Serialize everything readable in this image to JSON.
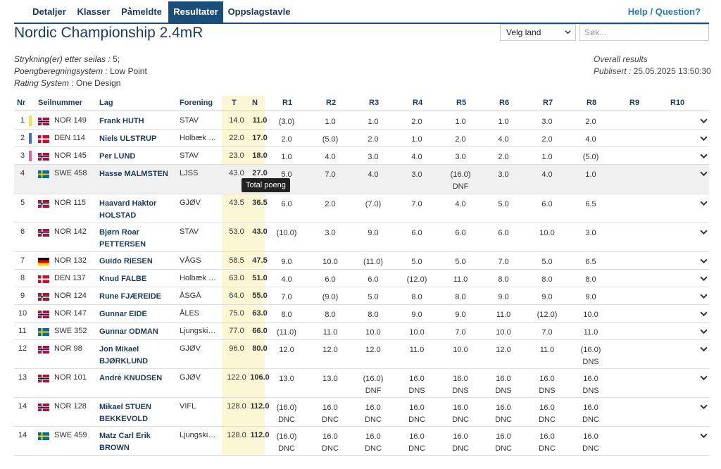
{
  "nav": {
    "tabs": [
      {
        "label": "Detaljer",
        "active": false
      },
      {
        "label": "Klasser",
        "active": false
      },
      {
        "label": "Påmeldte",
        "active": false
      },
      {
        "label": "Resultater",
        "active": true
      },
      {
        "label": "Oppslagstavle",
        "active": false
      }
    ],
    "help": "Help / Question?"
  },
  "title": "Nordic Championship 2.4mR",
  "filters": {
    "country_label": "Velg land",
    "search_placeholder": "Søk..."
  },
  "meta": {
    "discards_label": "Strykning(er) etter seilas :",
    "discards_value": "5;",
    "scoring_label": "Poengberegningsystem :",
    "scoring_value": "Low Point",
    "rating_label": "Rating System :",
    "rating_value": "One Design",
    "overall": "Overall results",
    "published_label": "Publisert :",
    "published_value": "25.05.2025 13:50:30"
  },
  "columns": [
    "Nr",
    "Seilnummer",
    "Lag",
    "Forening",
    "T",
    "N",
    "R1",
    "R2",
    "R3",
    "R4",
    "R5",
    "R6",
    "R7",
    "R8",
    "R9",
    "R10"
  ],
  "tooltip": "Total poeng",
  "colors": {
    "nav": "#1a4e7a",
    "yellow": "#f4e04d",
    "blue": "#3a6fd8",
    "pink": "#e8609a",
    "shade": "#fbf6d4"
  },
  "rows": [
    {
      "nr": "1",
      "marker": "yellow",
      "flag": "NOR",
      "sail": "NOR 149",
      "name": "Frank HUTH",
      "club": "STAV",
      "t": "14.0",
      "n": "11.0",
      "r": [
        [
          "(3.0)",
          ""
        ],
        [
          "1.0",
          ""
        ],
        [
          "1.0",
          ""
        ],
        [
          "2.0",
          ""
        ],
        [
          "1.0",
          ""
        ],
        [
          "1.0",
          ""
        ],
        [
          "3.0",
          ""
        ],
        [
          "2.0",
          ""
        ]
      ]
    },
    {
      "nr": "2",
      "marker": "blue",
      "flag": "DEN",
      "sail": "DEN 114",
      "name": "Niels ULSTRUP",
      "club": "Holbæk S...",
      "t": "22.0",
      "n": "17.0",
      "r": [
        [
          "2.0",
          ""
        ],
        [
          "(5.0)",
          ""
        ],
        [
          "2.0",
          ""
        ],
        [
          "1.0",
          ""
        ],
        [
          "2.0",
          ""
        ],
        [
          "4.0",
          ""
        ],
        [
          "2.0",
          ""
        ],
        [
          "4.0",
          ""
        ]
      ]
    },
    {
      "nr": "3",
      "marker": "pink",
      "flag": "NOR",
      "sail": "NOR 145",
      "name": "Per LUND",
      "club": "STAV",
      "t": "23.0",
      "n": "18.0",
      "r": [
        [
          "1.0",
          ""
        ],
        [
          "4.0",
          ""
        ],
        [
          "3.0",
          ""
        ],
        [
          "4.0",
          ""
        ],
        [
          "3.0",
          ""
        ],
        [
          "2.0",
          ""
        ],
        [
          "1.0",
          ""
        ],
        [
          "(5.0)",
          ""
        ]
      ]
    },
    {
      "nr": "4",
      "marker": "",
      "flag": "SWE",
      "sail": "SWE 458",
      "name": "Hasse MALMSTEN",
      "club": "LJSS",
      "t": "43.0",
      "n": "27.0",
      "r": [
        [
          "5.0",
          ""
        ],
        [
          "7.0",
          ""
        ],
        [
          "4.0",
          ""
        ],
        [
          "3.0",
          ""
        ],
        [
          "(16.0)",
          "DNF"
        ],
        [
          "3.0",
          ""
        ],
        [
          "4.0",
          ""
        ],
        [
          "1.0",
          ""
        ]
      ]
    },
    {
      "nr": "5",
      "marker": "",
      "flag": "NOR",
      "sail": "NOR 115",
      "name": "Haavard Haktor HOLSTAD",
      "club": "GJØV",
      "t": "43.5",
      "n": "36.5",
      "r": [
        [
          "6.0",
          ""
        ],
        [
          "2.0",
          ""
        ],
        [
          "(7.0)",
          ""
        ],
        [
          "7.0",
          ""
        ],
        [
          "4.0",
          ""
        ],
        [
          "5.0",
          ""
        ],
        [
          "6.0",
          ""
        ],
        [
          "6.5",
          ""
        ]
      ]
    },
    {
      "nr": "6",
      "marker": "",
      "flag": "NOR",
      "sail": "NOR 142",
      "name": "Bjørn Roar PETTERSEN",
      "club": "STAV",
      "t": "53.0",
      "n": "43.0",
      "r": [
        [
          "(10.0)",
          ""
        ],
        [
          "3.0",
          ""
        ],
        [
          "9.0",
          ""
        ],
        [
          "6.0",
          ""
        ],
        [
          "6.0",
          ""
        ],
        [
          "6.0",
          ""
        ],
        [
          "10.0",
          ""
        ],
        [
          "3.0",
          ""
        ]
      ]
    },
    {
      "nr": "7",
      "marker": "",
      "flag": "GER",
      "sail": "NOR 132",
      "name": "Guido RIESEN",
      "club": "VÅGS",
      "t": "58.5",
      "n": "47.5",
      "r": [
        [
          "9.0",
          ""
        ],
        [
          "10.0",
          ""
        ],
        [
          "(11.0)",
          ""
        ],
        [
          "5.0",
          ""
        ],
        [
          "5.0",
          ""
        ],
        [
          "7.0",
          ""
        ],
        [
          "5.0",
          ""
        ],
        [
          "6.5",
          ""
        ]
      ]
    },
    {
      "nr": "8",
      "marker": "",
      "flag": "DEN",
      "sail": "DEN 137",
      "name": "Knud FALBE",
      "club": "Holbæk S...",
      "t": "63.0",
      "n": "51.0",
      "r": [
        [
          "4.0",
          ""
        ],
        [
          "6.0",
          ""
        ],
        [
          "6.0",
          ""
        ],
        [
          "(12.0)",
          ""
        ],
        [
          "11.0",
          ""
        ],
        [
          "8.0",
          ""
        ],
        [
          "8.0",
          ""
        ],
        [
          "8.0",
          ""
        ]
      ]
    },
    {
      "nr": "9",
      "marker": "",
      "flag": "NOR",
      "sail": "NOR 124",
      "name": "Rune FJÆREIDE",
      "club": "ÅSGÅ",
      "t": "64.0",
      "n": "55.0",
      "r": [
        [
          "7.0",
          ""
        ],
        [
          "(9.0)",
          ""
        ],
        [
          "5.0",
          ""
        ],
        [
          "8.0",
          ""
        ],
        [
          "8.0",
          ""
        ],
        [
          "9.0",
          ""
        ],
        [
          "9.0",
          ""
        ],
        [
          "9.0",
          ""
        ]
      ]
    },
    {
      "nr": "10",
      "marker": "",
      "flag": "NOR",
      "sail": "NOR 147",
      "name": "Gunnar EIDE",
      "club": "ÅLES",
      "t": "75.0",
      "n": "63.0",
      "r": [
        [
          "8.0",
          ""
        ],
        [
          "8.0",
          ""
        ],
        [
          "8.0",
          ""
        ],
        [
          "9.0",
          ""
        ],
        [
          "9.0",
          ""
        ],
        [
          "11.0",
          ""
        ],
        [
          "(12.0)",
          ""
        ],
        [
          "10.0",
          ""
        ]
      ]
    },
    {
      "nr": "11",
      "marker": "",
      "flag": "SWE",
      "sail": "SWE 352",
      "name": "Gunnar ODMAN",
      "club": "Ljungskill...",
      "t": "77.0",
      "n": "66.0",
      "r": [
        [
          "(11.0)",
          ""
        ],
        [
          "11.0",
          ""
        ],
        [
          "10.0",
          ""
        ],
        [
          "10.0",
          ""
        ],
        [
          "7.0",
          ""
        ],
        [
          "10.0",
          ""
        ],
        [
          "7.0",
          ""
        ],
        [
          "11.0",
          ""
        ]
      ]
    },
    {
      "nr": "12",
      "marker": "",
      "flag": "NOR",
      "sail": "NOR 98",
      "name": "Jon Mikael BJØRKLUND",
      "club": "GJØV",
      "t": "96.0",
      "n": "80.0",
      "r": [
        [
          "12.0",
          ""
        ],
        [
          "12.0",
          ""
        ],
        [
          "12.0",
          ""
        ],
        [
          "11.0",
          ""
        ],
        [
          "10.0",
          ""
        ],
        [
          "12.0",
          ""
        ],
        [
          "11.0",
          ""
        ],
        [
          "(16.0)",
          "DNS"
        ]
      ]
    },
    {
      "nr": "13",
      "marker": "",
      "flag": "NOR",
      "sail": "NOR 101",
      "name": "Andrè KNUDSEN",
      "club": "GJØV",
      "t": "122.0",
      "n": "106.0",
      "r": [
        [
          "13.0",
          ""
        ],
        [
          "13.0",
          ""
        ],
        [
          "(16.0)",
          "DNF"
        ],
        [
          "16.0",
          "DNS"
        ],
        [
          "16.0",
          "DNS"
        ],
        [
          "16.0",
          "DNS"
        ],
        [
          "16.0",
          "DNS"
        ],
        [
          "16.0",
          "DNS"
        ]
      ]
    },
    {
      "nr": "14",
      "marker": "",
      "flag": "NOR",
      "sail": "NOR 128",
      "name": "Mikael STUEN BEKKEVOLD",
      "club": "VIFL",
      "t": "128.0",
      "n": "112.0",
      "r": [
        [
          "(16.0)",
          "DNC"
        ],
        [
          "16.0",
          "DNC"
        ],
        [
          "16.0",
          "DNC"
        ],
        [
          "16.0",
          "DNC"
        ],
        [
          "16.0",
          "DNC"
        ],
        [
          "16.0",
          "DNC"
        ],
        [
          "16.0",
          "DNC"
        ],
        [
          "16.0",
          "DNC"
        ]
      ]
    },
    {
      "nr": "14",
      "marker": "",
      "flag": "SWE",
      "sail": "SWE 459",
      "name": "Matz Carl Erik BROWN",
      "club": "Ljungskile...",
      "t": "128.0",
      "n": "112.0",
      "r": [
        [
          "(16.0)",
          "DNC"
        ],
        [
          "16.0",
          "DNC"
        ],
        [
          "16.0",
          "DNC"
        ],
        [
          "16.0",
          "DNC"
        ],
        [
          "16.0",
          "DNC"
        ],
        [
          "16.0",
          "DNC"
        ],
        [
          "16.0",
          "DNC"
        ],
        [
          "16.0",
          "DNC"
        ]
      ]
    }
  ]
}
